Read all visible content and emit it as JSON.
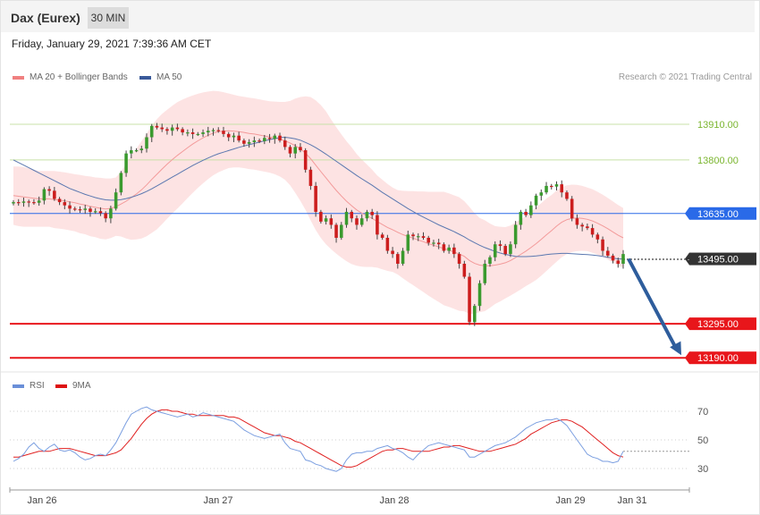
{
  "header": {
    "instrument": "Dax (Eurex)",
    "timeframe": "30 MIN"
  },
  "datetime": "Friday, January 29, 2021 7:39:36 AM CET",
  "legend": {
    "ma20": {
      "label": "MA 20 + Bollinger Bands",
      "color": "#f08080"
    },
    "ma50": {
      "label": "MA 50",
      "color": "#3a5a9a"
    }
  },
  "credit": "Research © 2021 Trading Central",
  "rsi_legend": {
    "rsi": {
      "label": "RSI",
      "color": "#6a8fd8"
    },
    "ma9": {
      "label": "9MA",
      "color": "#dd1111"
    }
  },
  "chart_data": {
    "type": "candlestick",
    "levels": [
      {
        "value": 13910,
        "label": "13910.00",
        "kind": "resistance",
        "color": "#8dc63f"
      },
      {
        "value": 13800,
        "label": "13800.00",
        "kind": "resistance",
        "color": "#8dc63f"
      },
      {
        "value": 13635,
        "label": "13635.00",
        "kind": "pivot",
        "color": "#2a6ae8"
      },
      {
        "value": 13495,
        "label": "13495.00",
        "kind": "last-price",
        "color": "#333333"
      },
      {
        "value": 13295,
        "label": "13295.00",
        "kind": "support",
        "color": "#e8161b"
      },
      {
        "value": 13190,
        "label": "13190.00",
        "kind": "support",
        "color": "#e8161b"
      }
    ],
    "x_ticks": [
      "Jan 26",
      "Jan 27",
      "Jan 28",
      "Jan 29",
      "Jan 31"
    ],
    "forecast_arrow": {
      "from": 13495,
      "to": 13190,
      "direction": "down"
    },
    "close": [
      13670,
      13668,
      13672,
      13670,
      13668,
      13675,
      13710,
      13705,
      13680,
      13670,
      13660,
      13650,
      13648,
      13646,
      13650,
      13640,
      13642,
      13636,
      13620,
      13650,
      13700,
      13760,
      13820,
      13830,
      13830,
      13835,
      13870,
      13905,
      13900,
      13895,
      13890,
      13900,
      13895,
      13885,
      13885,
      13880,
      13880,
      13885,
      13890,
      13892,
      13890,
      13880,
      13870,
      13875,
      13860,
      13850,
      13855,
      13860,
      13858,
      13868,
      13865,
      13875,
      13860,
      13840,
      13820,
      13840,
      13830,
      13770,
      13720,
      13640,
      13610,
      13620,
      13600,
      13560,
      13600,
      13640,
      13620,
      13600,
      13620,
      13640,
      13630,
      13570,
      13560,
      13520,
      13510,
      13480,
      13520,
      13570,
      13565,
      13565,
      13560,
      13545,
      13545,
      13540,
      13520,
      13530,
      13510,
      13480,
      13440,
      13300,
      13350,
      13420,
      13480,
      13500,
      13540,
      13535,
      13510,
      13540,
      13600,
      13640,
      13630,
      13660,
      13690,
      13700,
      13720,
      13718,
      13725,
      13700,
      13680,
      13620,
      13600,
      13595,
      13590,
      13570,
      13555,
      13520,
      13505,
      13490,
      13480,
      13510
    ],
    "ma20": [
      13690,
      13688,
      13686,
      13684,
      13682,
      13680,
      13680,
      13680,
      13678,
      13676,
      13674,
      13671,
      13668,
      13664,
      13661,
      13657,
      13654,
      13651,
      13649,
      13651,
      13656,
      13664,
      13673,
      13684,
      13695,
      13708,
      13723,
      13740,
      13756,
      13772,
      13787,
      13801,
      13814,
      13826,
      13838,
      13849,
      13859,
      13868,
      13876,
      13883,
      13887,
      13889,
      13890,
      13889,
      13887,
      13885,
      13882,
      13880,
      13877,
      13874,
      13871,
      13868,
      13864,
      13859,
      13852,
      13844,
      13834,
      13821,
      13804,
      13784,
      13764,
      13745,
      13725,
      13706,
      13689,
      13673,
      13659,
      13646,
      13636,
      13628,
      13620,
      13610,
      13601,
      13592,
      13585,
      13577,
      13570,
      13564,
      13559,
      13553,
      13548,
      13542,
      13537,
      13532,
      13527,
      13522,
      13516,
      13510,
      13503,
      13490,
      13481,
      13476,
      13474,
      13474,
      13476,
      13479,
      13483,
      13490,
      13499,
      13509,
      13519,
      13530,
      13542,
      13555,
      13569,
      13582,
      13596,
      13608,
      13616,
      13620,
      13621,
      13620,
      13617,
      13612,
      13605,
      13597,
      13588,
      13578,
      13568,
      13560
    ],
    "ma50": [
      13800,
      13792,
      13784,
      13776,
      13768,
      13760,
      13752,
      13744,
      13736,
      13728,
      13720,
      13712,
      13706,
      13700,
      13694,
      13689,
      13684,
      13680,
      13677,
      13676,
      13676,
      13678,
      13681,
      13685,
      13690,
      13696,
      13703,
      13711,
      13720,
      13729,
      13738,
      13747,
      13756,
      13765,
      13774,
      13783,
      13791,
      13799,
      13806,
      13813,
      13819,
      13824,
      13829,
      13834,
      13839,
      13843,
      13847,
      13851,
      13855,
      13859,
      13863,
      13866,
      13869,
      13870,
      13868,
      13865,
      13861,
      13854,
      13847,
      13838,
      13828,
      13818,
      13807,
      13796,
      13785,
      13774,
      13763,
      13752,
      13742,
      13732,
      13722,
      13711,
      13700,
      13690,
      13680,
      13670,
      13660,
      13650,
      13641,
      13632,
      13624,
      13616,
      13608,
      13600,
      13593,
      13586,
      13579,
      13571,
      13563,
      13553,
      13545,
      13537,
      13530,
      13524,
      13518,
      13513,
      13509,
      13506,
      13503,
      13502,
      13502,
      13503,
      13504,
      13506,
      13508,
      13510,
      13511,
      13512,
      13512,
      13511,
      13510,
      13509,
      13508,
      13507,
      13505,
      13503,
      13500,
      13498,
      13495,
      13495
    ],
    "bb_width": [
      90,
      92,
      92,
      90,
      88,
      86,
      86,
      86,
      88,
      88,
      88,
      88,
      88,
      90,
      90,
      92,
      92,
      94,
      94,
      92,
      90,
      100,
      115,
      130,
      140,
      150,
      158,
      165,
      170,
      170,
      168,
      166,
      164,
      160,
      155,
      150,
      145,
      140,
      135,
      130,
      125,
      120,
      115,
      112,
      110,
      110,
      110,
      110,
      110,
      110,
      110,
      112,
      115,
      120,
      130,
      145,
      160,
      175,
      190,
      200,
      205,
      205,
      200,
      195,
      190,
      185,
      180,
      172,
      165,
      158,
      150,
      142,
      138,
      134,
      130,
      130,
      135,
      140,
      145,
      150,
      155,
      160,
      165,
      170,
      175,
      175,
      175,
      175,
      170,
      165,
      155,
      145,
      140,
      130,
      120,
      115,
      110,
      108,
      108,
      108,
      108,
      110,
      112,
      112,
      112,
      110,
      110,
      108,
      106,
      104,
      102,
      100,
      98,
      98,
      97,
      96,
      95,
      94,
      93,
      92
    ],
    "rsi": [
      35,
      37,
      40,
      45,
      48,
      44,
      42,
      45,
      47,
      43,
      42,
      43,
      41,
      38,
      36,
      37,
      39,
      40,
      39,
      43,
      48,
      55,
      62,
      68,
      70,
      72,
      73,
      71,
      70,
      69,
      68,
      67,
      66,
      67,
      68,
      66,
      67,
      69,
      68,
      67,
      66,
      65,
      64,
      63,
      60,
      57,
      55,
      53,
      52,
      51,
      52,
      53,
      54,
      48,
      44,
      43,
      42,
      36,
      35,
      33,
      32,
      30,
      29,
      28,
      30,
      36,
      40,
      41,
      41,
      42,
      42,
      44,
      45,
      46,
      44,
      43,
      41,
      38,
      36,
      40,
      43,
      46,
      47,
      48,
      47,
      46,
      45,
      44,
      43,
      38,
      38,
      40,
      42,
      44,
      46,
      47,
      48,
      50,
      52,
      55,
      58,
      60,
      62,
      63,
      64,
      64,
      65,
      63,
      60,
      55,
      50,
      45,
      40,
      38,
      37,
      35,
      35,
      34,
      35,
      42
    ],
    "rsi_ma9": [
      38,
      38,
      39,
      40,
      41,
      42,
      42,
      42,
      43,
      44,
      44,
      44,
      43,
      42,
      41,
      40,
      39,
      39,
      39,
      40,
      41,
      43,
      47,
      51,
      56,
      61,
      65,
      68,
      70,
      71,
      71,
      70,
      70,
      69,
      68,
      68,
      67,
      67,
      67,
      67,
      67,
      67,
      66,
      66,
      65,
      63,
      61,
      59,
      57,
      55,
      54,
      53,
      53,
      52,
      51,
      49,
      48,
      46,
      44,
      42,
      40,
      38,
      36,
      34,
      32,
      31,
      31,
      32,
      34,
      36,
      38,
      40,
      42,
      43,
      43,
      44,
      44,
      43,
      42,
      42,
      42,
      42,
      43,
      44,
      45,
      45,
      46,
      46,
      45,
      44,
      43,
      42,
      42,
      42,
      43,
      44,
      45,
      46,
      47,
      49,
      51,
      54,
      56,
      58,
      60,
      62,
      63,
      64,
      64,
      63,
      61,
      59,
      56,
      53,
      50,
      47,
      44,
      41,
      39,
      38
    ],
    "rsi_levels": [
      70,
      50,
      30
    ],
    "rsi_last": 42
  }
}
